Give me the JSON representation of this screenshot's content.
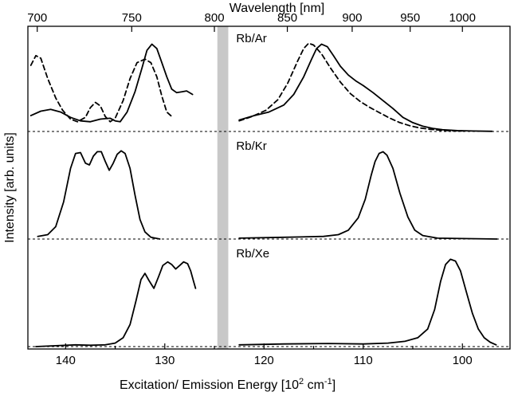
{
  "chart_data": {
    "type": "line",
    "title": "",
    "xlabel_bottom": "Excitation/ Emission Energy [10",
    "xlabel_bottom_exp": "2",
    "xlabel_bottom_unit": " cm",
    "xlabel_bottom_unit_exp": "-1",
    "xlabel_bottom_close": "]",
    "xlabel_top": "Wavelength [nm]",
    "ylabel": "Intensity [arb. units]",
    "x_bottom_range": [
      143.8,
      95.2
    ],
    "x_bottom_ticks": [
      140,
      130,
      120,
      110,
      100
    ],
    "x_top_ticks": [
      700,
      750,
      800,
      850,
      900,
      950,
      1000
    ],
    "gap_band": [
      124.7,
      123.6
    ],
    "grid": false,
    "panels": [
      {
        "label": "Rb/Ar",
        "series": [
          {
            "style": "solid",
            "points": [
              [
                143.5,
                0.18
              ],
              [
                142.5,
                0.23
              ],
              [
                141.5,
                0.25
              ],
              [
                140.5,
                0.22
              ],
              [
                139.5,
                0.16
              ],
              [
                138.5,
                0.12
              ],
              [
                137.5,
                0.11
              ],
              [
                136.5,
                0.14
              ],
              [
                135.5,
                0.15
              ],
              [
                135.0,
                0.12
              ],
              [
                134.5,
                0.11
              ],
              [
                133.8,
                0.22
              ],
              [
                133.0,
                0.45
              ],
              [
                132.3,
                0.72
              ],
              [
                131.8,
                0.92
              ],
              [
                131.3,
                0.99
              ],
              [
                130.8,
                0.94
              ],
              [
                130.3,
                0.78
              ],
              [
                129.8,
                0.62
              ],
              [
                129.3,
                0.48
              ],
              [
                128.8,
                0.44
              ],
              [
                128.3,
                0.45
              ],
              [
                127.8,
                0.46
              ],
              [
                127.2,
                0.42
              ]
            ]
          },
          {
            "style": "dashed",
            "points": [
              [
                143.5,
                0.75
              ],
              [
                143.0,
                0.86
              ],
              [
                142.5,
                0.83
              ],
              [
                141.8,
                0.6
              ],
              [
                141.0,
                0.38
              ],
              [
                140.3,
                0.24
              ],
              [
                139.5,
                0.14
              ],
              [
                138.8,
                0.11
              ],
              [
                138.0,
                0.16
              ],
              [
                137.5,
                0.27
              ],
              [
                137.0,
                0.33
              ],
              [
                136.5,
                0.29
              ],
              [
                136.0,
                0.17
              ],
              [
                135.5,
                0.11
              ],
              [
                135.0,
                0.15
              ],
              [
                134.2,
                0.35
              ],
              [
                133.5,
                0.6
              ],
              [
                132.8,
                0.78
              ],
              [
                132.0,
                0.82
              ],
              [
                131.4,
                0.78
              ],
              [
                130.8,
                0.62
              ],
              [
                130.3,
                0.4
              ],
              [
                129.8,
                0.22
              ],
              [
                129.3,
                0.17
              ]
            ]
          },
          {
            "style": "solid",
            "points": [
              [
                122.5,
                0.13
              ],
              [
                121.0,
                0.18
              ],
              [
                119.5,
                0.22
              ],
              [
                118.0,
                0.3
              ],
              [
                117.0,
                0.42
              ],
              [
                116.0,
                0.62
              ],
              [
                115.2,
                0.82
              ],
              [
                114.7,
                0.94
              ],
              [
                114.2,
                0.99
              ],
              [
                113.6,
                0.96
              ],
              [
                113.0,
                0.86
              ],
              [
                112.3,
                0.74
              ],
              [
                111.5,
                0.64
              ],
              [
                110.7,
                0.57
              ],
              [
                110.0,
                0.52
              ],
              [
                109.0,
                0.44
              ],
              [
                108.0,
                0.35
              ],
              [
                107.0,
                0.26
              ],
              [
                106.0,
                0.16
              ],
              [
                105.0,
                0.1
              ],
              [
                104.0,
                0.06
              ],
              [
                103.0,
                0.035
              ],
              [
                102.0,
                0.02
              ],
              [
                100.5,
                0.01
              ],
              [
                99.0,
                0.005
              ],
              [
                97.0,
                0.002
              ]
            ]
          },
          {
            "style": "dashed",
            "points": [
              [
                122.5,
                0.12
              ],
              [
                121.2,
                0.17
              ],
              [
                119.8,
                0.24
              ],
              [
                118.6,
                0.36
              ],
              [
                117.6,
                0.55
              ],
              [
                116.6,
                0.8
              ],
              [
                116.0,
                0.94
              ],
              [
                115.5,
                1.0
              ],
              [
                115.0,
                0.98
              ],
              [
                114.2,
                0.88
              ],
              [
                113.3,
                0.72
              ],
              [
                112.3,
                0.56
              ],
              [
                111.3,
                0.43
              ],
              [
                110.3,
                0.34
              ],
              [
                109.3,
                0.27
              ],
              [
                108.3,
                0.21
              ],
              [
                107.3,
                0.15
              ],
              [
                106.3,
                0.1
              ],
              [
                105.3,
                0.065
              ],
              [
                104.3,
                0.04
              ],
              [
                103.3,
                0.025
              ],
              [
                102.0,
                0.012
              ],
              [
                100.0,
                0.005
              ]
            ]
          }
        ]
      },
      {
        "label": "Rb/Kr",
        "series": [
          {
            "style": "solid",
            "points": [
              [
                142.8,
                0.03
              ],
              [
                141.8,
                0.05
              ],
              [
                141.0,
                0.14
              ],
              [
                140.2,
                0.42
              ],
              [
                139.5,
                0.8
              ],
              [
                139.0,
                0.97
              ],
              [
                138.5,
                0.98
              ],
              [
                138.0,
                0.86
              ],
              [
                137.6,
                0.84
              ],
              [
                137.2,
                0.94
              ],
              [
                136.8,
                0.99
              ],
              [
                136.4,
                0.99
              ],
              [
                136.0,
                0.88
              ],
              [
                135.6,
                0.78
              ],
              [
                135.2,
                0.86
              ],
              [
                134.8,
                0.96
              ],
              [
                134.4,
                1.0
              ],
              [
                134.0,
                0.97
              ],
              [
                133.5,
                0.8
              ],
              [
                133.0,
                0.5
              ],
              [
                132.5,
                0.22
              ],
              [
                132.0,
                0.08
              ],
              [
                131.4,
                0.02
              ],
              [
                130.5,
                0.0
              ]
            ]
          },
          {
            "style": "solid",
            "points": [
              [
                122.5,
                0.01
              ],
              [
                118.0,
                0.02
              ],
              [
                114.0,
                0.03
              ],
              [
                112.5,
                0.05
              ],
              [
                111.5,
                0.1
              ],
              [
                110.5,
                0.24
              ],
              [
                109.8,
                0.45
              ],
              [
                109.2,
                0.72
              ],
              [
                108.8,
                0.88
              ],
              [
                108.4,
                0.97
              ],
              [
                108.0,
                0.99
              ],
              [
                107.6,
                0.95
              ],
              [
                107.0,
                0.8
              ],
              [
                106.3,
                0.52
              ],
              [
                105.5,
                0.25
              ],
              [
                104.8,
                0.1
              ],
              [
                104.0,
                0.04
              ],
              [
                102.5,
                0.01
              ],
              [
                100.0,
                0.005
              ],
              [
                96.5,
                0.0
              ]
            ]
          }
        ]
      },
      {
        "label": "Rb/Xe",
        "series": [
          {
            "style": "solid",
            "points": [
              [
                143.0,
                0.0
              ],
              [
                141.0,
                0.01
              ],
              [
                139.0,
                0.02
              ],
              [
                137.5,
                0.015
              ],
              [
                136.0,
                0.02
              ],
              [
                135.0,
                0.04
              ],
              [
                134.2,
                0.1
              ],
              [
                133.5,
                0.25
              ],
              [
                132.9,
                0.52
              ],
              [
                132.4,
                0.76
              ],
              [
                132.0,
                0.83
              ],
              [
                131.6,
                0.75
              ],
              [
                131.1,
                0.66
              ],
              [
                130.6,
                0.8
              ],
              [
                130.2,
                0.92
              ],
              [
                129.7,
                0.96
              ],
              [
                129.3,
                0.93
              ],
              [
                128.9,
                0.88
              ],
              [
                128.5,
                0.92
              ],
              [
                128.1,
                0.96
              ],
              [
                127.7,
                0.94
              ],
              [
                127.4,
                0.86
              ],
              [
                127.1,
                0.74
              ],
              [
                126.9,
                0.66
              ]
            ]
          },
          {
            "style": "solid",
            "points": [
              [
                122.5,
                0.02
              ],
              [
                118.0,
                0.03
              ],
              [
                113.5,
                0.035
              ],
              [
                110.0,
                0.03
              ],
              [
                107.5,
                0.04
              ],
              [
                105.8,
                0.06
              ],
              [
                104.5,
                0.1
              ],
              [
                103.5,
                0.2
              ],
              [
                102.8,
                0.42
              ],
              [
                102.2,
                0.74
              ],
              [
                101.7,
                0.93
              ],
              [
                101.2,
                0.99
              ],
              [
                100.7,
                0.97
              ],
              [
                100.2,
                0.86
              ],
              [
                99.6,
                0.62
              ],
              [
                99.0,
                0.38
              ],
              [
                98.4,
                0.2
              ],
              [
                97.8,
                0.1
              ],
              [
                97.2,
                0.05
              ],
              [
                96.6,
                0.02
              ]
            ]
          }
        ]
      }
    ]
  }
}
